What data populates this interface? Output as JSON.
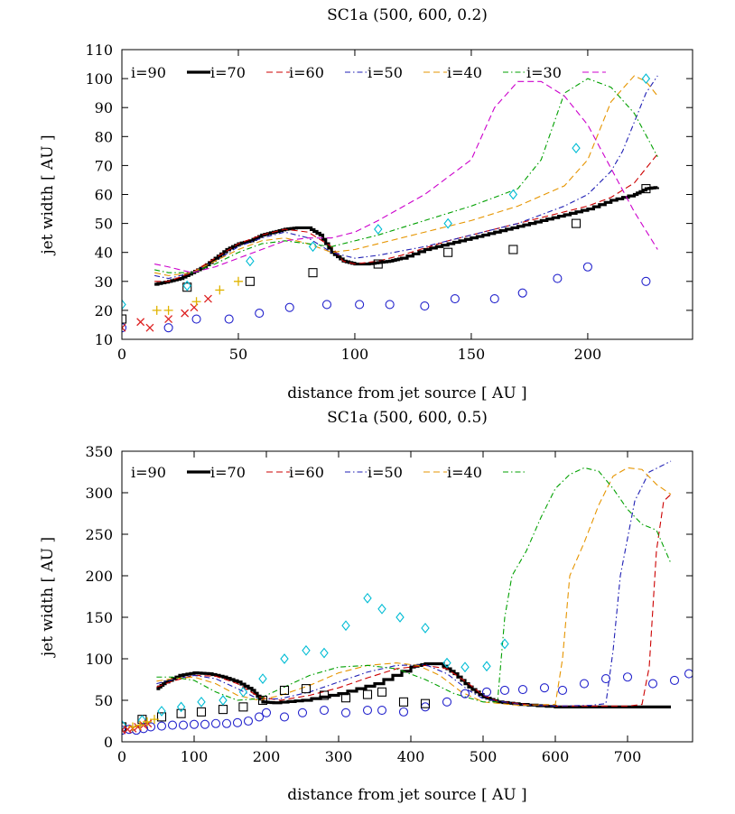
{
  "colors": {
    "i90": "#000000",
    "i70": "#cc0000",
    "i60": "#1f1fb4",
    "i50": "#e69500",
    "i40": "#00a000",
    "i30": "#cc00cc",
    "circles": "#2222cc",
    "squares": "#000000",
    "diamonds": "#00bcd4",
    "crosses": "#dd2222",
    "plus": "#e0b400"
  },
  "chart_data": [
    {
      "type": "line",
      "title": "SC1a (500, 600, 0.2)",
      "xlabel": "distance from jet source [ AU ]",
      "ylabel": "jet width [ AU ]",
      "xlim": [
        0,
        245
      ],
      "ylim": [
        10,
        110
      ],
      "xticks": [
        0,
        50,
        100,
        150,
        200
      ],
      "yticks": [
        10,
        20,
        30,
        40,
        50,
        60,
        70,
        80,
        90,
        100,
        110
      ],
      "legend_position": "top",
      "series": [
        {
          "name": "i=90",
          "style": "thick-step",
          "color": "#000000",
          "x": [
            14,
            20,
            25,
            30,
            35,
            40,
            45,
            50,
            55,
            60,
            65,
            70,
            75,
            80,
            85,
            90,
            95,
            100,
            105,
            110,
            115,
            120,
            130,
            140,
            150,
            160,
            170,
            180,
            190,
            200,
            210,
            220,
            225,
            230
          ],
          "y": [
            29,
            30,
            31,
            33,
            35,
            38,
            41,
            43,
            44,
            46,
            47,
            48,
            48.5,
            48.5,
            46,
            40,
            37,
            36,
            36,
            36.5,
            37,
            38,
            41,
            43,
            45,
            47,
            49,
            51,
            53,
            55,
            58,
            60,
            62,
            62.5
          ]
        },
        {
          "name": "i=70",
          "style": "dash",
          "color": "#cc0000",
          "x": [
            14,
            20,
            30,
            40,
            50,
            60,
            70,
            80,
            90,
            95,
            100,
            110,
            120,
            140,
            160,
            180,
            200,
            210,
            220,
            230
          ],
          "y": [
            30,
            30,
            33,
            38,
            43,
            46,
            48,
            47,
            42,
            37,
            36,
            37,
            39,
            44,
            48,
            52,
            56,
            59,
            64,
            74
          ]
        },
        {
          "name": "i=60",
          "style": "dashdot",
          "color": "#1f1fb4",
          "x": [
            14,
            20,
            30,
            40,
            50,
            60,
            70,
            80,
            90,
            100,
            110,
            130,
            150,
            170,
            190,
            200,
            210,
            215,
            220,
            225,
            230
          ],
          "y": [
            32,
            31,
            33,
            37,
            42,
            45,
            47,
            45,
            40,
            38,
            39,
            42,
            46,
            50,
            56,
            60,
            68,
            75,
            85,
            95,
            101
          ]
        },
        {
          "name": "i=50",
          "style": "dash",
          "color": "#e69500",
          "x": [
            14,
            20,
            30,
            40,
            50,
            60,
            70,
            80,
            90,
            100,
            110,
            130,
            150,
            170,
            190,
            200,
            210,
            220,
            225,
            230
          ],
          "y": [
            33,
            32,
            33,
            37,
            41,
            44,
            45,
            43,
            40,
            41,
            43,
            47,
            51,
            56,
            63,
            72,
            92,
            101,
            99,
            94
          ]
        },
        {
          "name": "i=40",
          "style": "dashdot",
          "color": "#00a000",
          "x": [
            14,
            20,
            30,
            40,
            50,
            60,
            70,
            80,
            90,
            100,
            110,
            130,
            150,
            170,
            180,
            190,
            200,
            210,
            220,
            230
          ],
          "y": [
            34,
            33,
            33,
            36,
            40,
            43,
            44,
            43,
            42,
            44,
            46,
            51,
            56,
            62,
            72,
            95,
            100,
            97,
            88,
            73
          ]
        },
        {
          "name": "i=30",
          "style": "dash",
          "color": "#cc00cc",
          "x": [
            14,
            20,
            30,
            40,
            50,
            60,
            70,
            80,
            90,
            100,
            110,
            130,
            150,
            160,
            170,
            180,
            190,
            200,
            210,
            220,
            230
          ],
          "y": [
            36,
            35,
            33,
            35,
            38,
            41,
            44,
            45,
            45,
            47,
            51,
            60,
            72,
            90,
            99,
            99,
            94,
            84,
            69,
            54,
            41
          ]
        },
        {
          "name": "circles",
          "style": "marker-circle",
          "color": "#2222cc",
          "x": [
            0,
            20,
            32,
            46,
            59,
            72,
            88,
            102,
            115,
            130,
            143,
            160,
            172,
            187,
            200,
            225
          ],
          "y": [
            14,
            14,
            17,
            17,
            19,
            21,
            22,
            22,
            22,
            21.5,
            24,
            24,
            26,
            31,
            35,
            30
          ]
        },
        {
          "name": "squares",
          "style": "marker-square",
          "color": "#000000",
          "x": [
            0,
            28,
            55,
            82,
            110,
            140,
            168,
            195,
            225
          ],
          "y": [
            17,
            28,
            30,
            33,
            36,
            40,
            41,
            50,
            62
          ]
        },
        {
          "name": "diamonds",
          "style": "marker-diamond",
          "color": "#00bcd4",
          "x": [
            0,
            28,
            55,
            82,
            110,
            140,
            168,
            195,
            225
          ],
          "y": [
            22,
            28.5,
            37,
            42,
            48,
            50,
            60,
            76,
            100
          ]
        },
        {
          "name": "crosses",
          "style": "marker-x",
          "color": "#dd2222",
          "x": [
            0,
            8,
            12,
            20,
            27,
            31,
            37
          ],
          "y": [
            14,
            16,
            14,
            17,
            19,
            21,
            24
          ]
        },
        {
          "name": "plus",
          "style": "marker-plus",
          "color": "#e0b400",
          "x": [
            15,
            20,
            32,
            42,
            50
          ],
          "y": [
            20,
            20,
            23,
            27,
            30
          ]
        }
      ]
    },
    {
      "type": "line",
      "title": "SC1a (500, 600, 0.5)",
      "xlabel": "distance from jet source [ AU ]",
      "ylabel": "jet width [ AU ]",
      "xlim": [
        0,
        790
      ],
      "ylim": [
        0,
        350
      ],
      "xticks": [
        0,
        100,
        200,
        300,
        400,
        500,
        600,
        700
      ],
      "yticks": [
        0,
        50,
        100,
        150,
        200,
        250,
        300,
        350
      ],
      "legend_position": "top",
      "series": [
        {
          "name": "i=90",
          "style": "thick-step",
          "color": "#000000",
          "x": [
            48,
            60,
            80,
            100,
            120,
            140,
            160,
            180,
            195,
            210,
            250,
            300,
            350,
            400,
            420,
            440,
            460,
            480,
            500,
            520,
            550,
            600,
            650,
            700,
            760
          ],
          "y": [
            64,
            72,
            80,
            83,
            82,
            78,
            72,
            62,
            48,
            47,
            50,
            58,
            70,
            90,
            94,
            94,
            82,
            66,
            54,
            48,
            45,
            42,
            42,
            42,
            42
          ]
        },
        {
          "name": "i=70",
          "style": "dash",
          "color": "#cc0000",
          "x": [
            48,
            70,
            100,
            130,
            160,
            190,
            220,
            260,
            300,
            340,
            380,
            420,
            450,
            480,
            500,
            520,
            560,
            600,
            650,
            700,
            720,
            730,
            740,
            750,
            760
          ],
          "y": [
            66,
            73,
            80,
            79,
            70,
            54,
            50,
            56,
            65,
            77,
            88,
            92,
            88,
            70,
            56,
            49,
            45,
            43,
            43,
            43,
            45,
            90,
            230,
            290,
            298
          ]
        },
        {
          "name": "i=60",
          "style": "dashdot",
          "color": "#1f1fb4",
          "x": [
            48,
            70,
            100,
            130,
            160,
            190,
            220,
            260,
            300,
            340,
            380,
            420,
            450,
            480,
            500,
            550,
            600,
            650,
            670,
            680,
            690,
            710,
            730,
            760
          ],
          "y": [
            70,
            75,
            80,
            76,
            64,
            51,
            52,
            60,
            72,
            84,
            92,
            93,
            82,
            62,
            52,
            45,
            43,
            44,
            46,
            110,
            200,
            290,
            325,
            338
          ]
        },
        {
          "name": "i=50",
          "style": "dash",
          "color": "#e69500",
          "x": [
            48,
            70,
            100,
            130,
            160,
            190,
            220,
            260,
            300,
            340,
            380,
            410,
            440,
            470,
            500,
            550,
            600,
            610,
            620,
            640,
            660,
            680,
            700,
            720,
            740,
            760
          ],
          "y": [
            73,
            76,
            78,
            70,
            56,
            50,
            56,
            68,
            83,
            92,
            95,
            92,
            80,
            60,
            48,
            44,
            45,
            100,
            200,
            240,
            285,
            320,
            330,
            328,
            310,
            298
          ]
        },
        {
          "name": "i=40",
          "style": "dashdot",
          "color": "#00a000",
          "x": [
            48,
            70,
            100,
            130,
            160,
            190,
            220,
            260,
            300,
            340,
            380,
            420,
            460,
            500,
            520,
            530,
            540,
            560,
            580,
            600,
            620,
            640,
            660,
            680,
            700,
            720,
            740,
            760
          ],
          "y": [
            78,
            78,
            74,
            60,
            50,
            52,
            64,
            80,
            90,
            92,
            88,
            75,
            58,
            48,
            48,
            150,
            200,
            230,
            270,
            305,
            322,
            330,
            326,
            305,
            280,
            262,
            255,
            215
          ]
        },
        {
          "name": "circles",
          "style": "marker-circle",
          "color": "#2222cc",
          "x": [
            0,
            10,
            20,
            30,
            40,
            55,
            70,
            85,
            100,
            115,
            130,
            145,
            160,
            175,
            190,
            200,
            225,
            250,
            280,
            310,
            340,
            360,
            390,
            420,
            450,
            475,
            505,
            530,
            555,
            585,
            610,
            640,
            670,
            700,
            735,
            765,
            785
          ],
          "y": [
            14,
            15,
            14,
            16,
            18,
            19,
            20,
            20,
            21,
            21,
            22,
            22,
            23,
            25,
            30,
            35,
            30,
            35,
            38,
            35,
            38,
            38,
            36,
            42,
            48,
            58,
            60,
            62,
            63,
            65,
            62,
            70,
            76,
            78,
            70,
            74,
            82
          ]
        },
        {
          "name": "squares",
          "style": "marker-square",
          "color": "#000000",
          "x": [
            0,
            28,
            55,
            82,
            110,
            140,
            168,
            195,
            225,
            255,
            280,
            310,
            340,
            360,
            390,
            420
          ],
          "y": [
            18,
            27,
            30,
            34,
            36,
            39,
            42,
            50,
            62,
            64,
            56,
            53,
            57,
            60,
            48,
            46
          ]
        },
        {
          "name": "diamonds",
          "style": "marker-diamond",
          "color": "#00bcd4",
          "x": [
            0,
            28,
            55,
            82,
            110,
            140,
            168,
            195,
            225,
            255,
            280,
            310,
            340,
            360,
            385,
            420,
            450,
            475,
            505,
            530
          ],
          "y": [
            20,
            26,
            37,
            42,
            48,
            50,
            60,
            76,
            100,
            110,
            107,
            140,
            173,
            160,
            150,
            137,
            95,
            90,
            91,
            118
          ]
        },
        {
          "name": "crosses",
          "style": "marker-x",
          "color": "#dd2222",
          "x": [
            0,
            8,
            15,
            22,
            30,
            36
          ],
          "y": [
            14,
            15,
            16,
            18,
            20,
            22
          ]
        },
        {
          "name": "plus",
          "style": "marker-plus",
          "color": "#e0b400",
          "x": [
            15,
            25,
            35,
            45
          ],
          "y": [
            18,
            20,
            24,
            27
          ]
        }
      ]
    }
  ]
}
